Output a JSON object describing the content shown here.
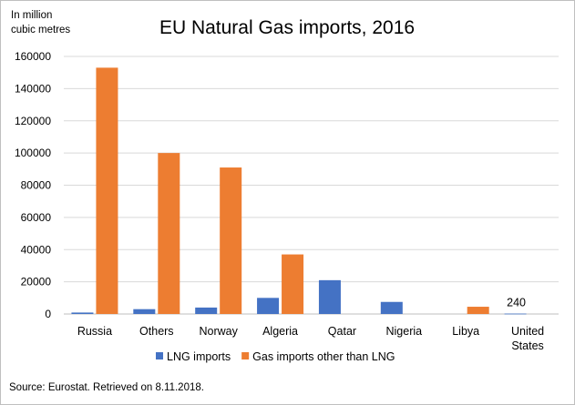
{
  "chart_data": {
    "type": "bar",
    "title": "EU Natural Gas imports, 2016",
    "unit_label": [
      "In million",
      "cubic metres"
    ],
    "xlabel": "",
    "ylabel": "",
    "ylim": [
      0,
      160000
    ],
    "yticks": [
      "0",
      "20000",
      "40000",
      "60000",
      "80000",
      "100000",
      "120000",
      "140000",
      "160000"
    ],
    "grid": true,
    "legend_position": "bottom",
    "categories": [
      [
        "Russia"
      ],
      [
        "Others"
      ],
      [
        "Norway"
      ],
      [
        "Algeria"
      ],
      [
        "Qatar"
      ],
      [
        "Nigeria"
      ],
      [
        "Libya"
      ],
      [
        "United",
        "States"
      ]
    ],
    "series": [
      {
        "name": "LNG imports",
        "color": "#4472c4",
        "values": [
          900,
          3000,
          4000,
          10000,
          21000,
          7500,
          0,
          240
        ]
      },
      {
        "name": "Gas imports other than LNG",
        "color": "#ed7d31",
        "values": [
          153000,
          100000,
          91000,
          37000,
          0,
          0,
          4500,
          0
        ]
      }
    ],
    "data_labels": [
      {
        "series": 0,
        "category": 7,
        "text": "240"
      }
    ]
  },
  "source": "Source: Eurostat. Retrieved on 8.11.2018."
}
